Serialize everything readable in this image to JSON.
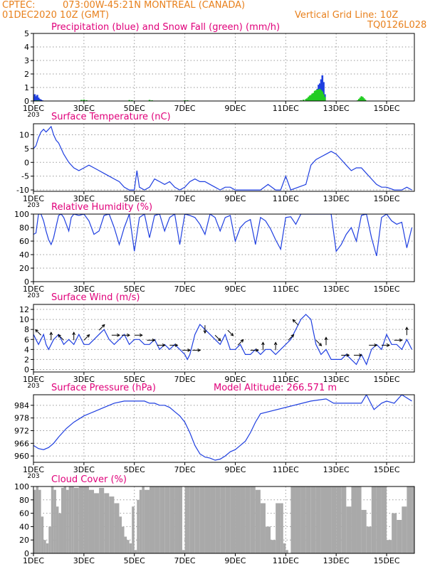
{
  "header": {
    "source": "CPTEC:",
    "location": "073:00W-45:21N  MONTREAL (CANADA)",
    "init_time": "01DEC2020 10Z (GMT)",
    "grid_line": "Vertical Grid Line: 10Z",
    "code": "TQ0126L028"
  },
  "colors": {
    "header": "#e8801c",
    "title": "#e0007a",
    "line": "#1f3fe0",
    "precip": "#1f3fe0",
    "snow": "#22cc22",
    "cloud": "#a9a9a9",
    "grid": "#9a9a9a",
    "axis": "#000000"
  },
  "x_labels": [
    "1DEC",
    "3DEC",
    "5DEC",
    "7DEC",
    "9DEC",
    "11DEC",
    "13DEC",
    "15DEC"
  ],
  "x_labels_day": [
    1,
    3,
    5,
    7,
    9,
    11,
    13,
    15
  ],
  "x_range": [
    1,
    16.1
  ],
  "year_stub": "203",
  "chart_data": [
    {
      "id": "precip",
      "type": "bar",
      "title": "Precipitation (blue) and Snow Fall (green) (mm/h)",
      "ylim": [
        0,
        5
      ],
      "yticks": [
        0,
        1,
        2,
        3,
        4,
        5
      ],
      "series": [
        {
          "name": "Precipitation",
          "color": "blue",
          "x": [
            1.0,
            1.05,
            1.1,
            1.15,
            1.2,
            1.25,
            1.3,
            1.35,
            11.9,
            11.95,
            12.0,
            12.05,
            12.1,
            12.15,
            12.2,
            12.25,
            12.3,
            12.35,
            12.4,
            12.45,
            12.5,
            12.55
          ],
          "values": [
            0.3,
            0.5,
            0.35,
            0.45,
            0.25,
            0.15,
            0.1,
            0.05,
            0.1,
            0.2,
            0.3,
            0.4,
            0.5,
            0.6,
            0.7,
            0.9,
            1.2,
            1.3,
            1.6,
            1.9,
            1.4,
            0.5
          ]
        },
        {
          "name": "Snow Fall",
          "color": "green",
          "x": [
            1.1,
            1.2,
            2.9,
            3.0,
            3.1,
            4.8,
            4.9,
            5.6,
            5.7,
            7.0,
            7.1,
            11.6,
            11.7,
            11.8,
            11.85,
            11.9,
            11.95,
            12.0,
            12.05,
            12.1,
            12.15,
            12.2,
            12.25,
            12.3,
            12.35,
            12.4,
            12.45,
            12.5,
            12.55,
            13.85,
            13.9,
            13.95,
            14.0,
            14.05,
            14.1,
            14.15
          ],
          "values": [
            0.05,
            0.05,
            0.08,
            0.1,
            0.06,
            0.07,
            0.06,
            0.08,
            0.05,
            0.06,
            0.05,
            0.05,
            0.1,
            0.15,
            0.2,
            0.3,
            0.4,
            0.45,
            0.55,
            0.6,
            0.75,
            0.8,
            0.85,
            0.85,
            0.9,
            0.8,
            0.7,
            0.5,
            0.3,
            0.05,
            0.15,
            0.25,
            0.35,
            0.3,
            0.2,
            0.1
          ]
        }
      ]
    },
    {
      "id": "temp",
      "type": "line",
      "title": "Surface Temperature (nC)",
      "ylim": [
        -10.5,
        14
      ],
      "yticks": [
        -10,
        -5,
        0,
        5,
        10
      ],
      "x": [
        1.0,
        1.1,
        1.2,
        1.3,
        1.4,
        1.5,
        1.6,
        1.7,
        1.8,
        1.9,
        2.0,
        2.2,
        2.4,
        2.6,
        2.8,
        3.0,
        3.2,
        3.4,
        3.6,
        3.8,
        4.0,
        4.2,
        4.4,
        4.6,
        4.8,
        5.0,
        5.1,
        5.2,
        5.4,
        5.6,
        5.8,
        6.0,
        6.2,
        6.4,
        6.6,
        6.8,
        7.0,
        7.2,
        7.4,
        7.6,
        7.8,
        8.0,
        8.2,
        8.4,
        8.6,
        8.8,
        9.0,
        9.5,
        10.0,
        10.3,
        10.6,
        10.8,
        11.0,
        11.2,
        11.5,
        11.8,
        12.0,
        12.2,
        12.4,
        12.6,
        12.8,
        13.0,
        13.2,
        13.4,
        13.6,
        13.8,
        14.0,
        14.2,
        14.4,
        14.6,
        14.8,
        15.0,
        15.3,
        15.6,
        15.8,
        16.0
      ],
      "values": [
        5,
        6,
        9,
        11,
        12,
        11,
        12,
        13,
        10,
        8,
        7,
        3,
        0,
        -2,
        -3,
        -2,
        -1,
        -2,
        -3,
        -4,
        -5,
        -6,
        -7,
        -9,
        -10,
        -10,
        -3,
        -9,
        -10,
        -9,
        -6,
        -7,
        -8,
        -7,
        -9,
        -10,
        -9,
        -7,
        -6,
        -7,
        -7,
        -8,
        -9,
        -10,
        -9,
        -9,
        -10,
        -10,
        -10,
        -8,
        -10,
        -10,
        -5,
        -10,
        -9,
        -8,
        -1,
        1,
        2,
        3,
        4,
        3,
        1,
        -1,
        -3,
        -2,
        -2,
        -4,
        -6,
        -8,
        -9,
        -9,
        -10,
        -10,
        -9,
        -10
      ]
    },
    {
      "id": "rh",
      "type": "line",
      "title": "Relative Humidity (%)",
      "ylim": [
        0,
        100
      ],
      "yticks": [
        0,
        20,
        40,
        60,
        80,
        100
      ],
      "x": [
        1.0,
        1.1,
        1.2,
        1.3,
        1.4,
        1.5,
        1.6,
        1.7,
        1.8,
        1.9,
        2.0,
        2.1,
        2.2,
        2.3,
        2.4,
        2.5,
        2.6,
        2.8,
        3.0,
        3.2,
        3.4,
        3.6,
        3.8,
        4.0,
        4.2,
        4.4,
        4.6,
        4.8,
        5.0,
        5.2,
        5.4,
        5.6,
        5.8,
        6.0,
        6.2,
        6.4,
        6.6,
        6.8,
        7.0,
        7.2,
        7.4,
        7.6,
        7.8,
        8.0,
        8.2,
        8.4,
        8.6,
        8.8,
        9.0,
        9.2,
        9.4,
        9.6,
        9.8,
        10.0,
        10.2,
        10.4,
        10.6,
        10.8,
        11.0,
        11.2,
        11.4,
        11.6,
        11.8,
        12.0,
        12.2,
        12.4,
        12.6,
        12.8,
        13.0,
        13.2,
        13.4,
        13.6,
        13.8,
        14.0,
        14.2,
        14.4,
        14.6,
        14.8,
        15.0,
        15.2,
        15.4,
        15.6,
        15.8,
        16.0
      ],
      "values": [
        70,
        72,
        100,
        100,
        90,
        75,
        62,
        55,
        65,
        82,
        98,
        100,
        95,
        85,
        75,
        95,
        100,
        98,
        100,
        90,
        70,
        75,
        98,
        100,
        80,
        55,
        80,
        100,
        45,
        95,
        100,
        65,
        98,
        100,
        75,
        95,
        100,
        55,
        100,
        98,
        95,
        85,
        70,
        100,
        95,
        75,
        95,
        98,
        60,
        80,
        88,
        92,
        55,
        95,
        90,
        78,
        62,
        48,
        95,
        96,
        85,
        100,
        100,
        100,
        100,
        100,
        100,
        100,
        45,
        55,
        70,
        80,
        60,
        98,
        100,
        65,
        38,
        95,
        100,
        90,
        85,
        88,
        50,
        80
      ]
    },
    {
      "id": "wind",
      "type": "line",
      "title": "Surface Wind (m/s)",
      "ylim": [
        -0.5,
        13
      ],
      "yticks": [
        0,
        2,
        4,
        6,
        8,
        10,
        12
      ],
      "x": [
        1.0,
        1.1,
        1.2,
        1.3,
        1.4,
        1.5,
        1.6,
        1.7,
        1.8,
        2.0,
        2.2,
        2.4,
        2.6,
        2.8,
        3.0,
        3.2,
        3.4,
        3.6,
        3.8,
        4.0,
        4.2,
        4.4,
        4.6,
        4.8,
        5.0,
        5.2,
        5.4,
        5.6,
        5.8,
        6.0,
        6.2,
        6.4,
        6.6,
        6.8,
        7.0,
        7.1,
        7.2,
        7.4,
        7.5,
        7.6,
        7.8,
        8.0,
        8.2,
        8.4,
        8.6,
        8.8,
        9.0,
        9.2,
        9.4,
        9.6,
        9.8,
        10.0,
        10.2,
        10.4,
        10.6,
        10.8,
        11.0,
        11.2,
        11.4,
        11.6,
        11.8,
        12.0,
        12.2,
        12.4,
        12.6,
        12.8,
        13.0,
        13.2,
        13.4,
        13.6,
        13.8,
        14.0,
        14.2,
        14.4,
        14.6,
        14.8,
        15.0,
        15.2,
        15.4,
        15.6,
        15.8,
        16.0
      ],
      "values": [
        7,
        6,
        5,
        6,
        7,
        5,
        4,
        5,
        6,
        7,
        5,
        6,
        5,
        7,
        5,
        5,
        6,
        7,
        8,
        6,
        5,
        6,
        7,
        5,
        6,
        6,
        5,
        5,
        6,
        4,
        5,
        4,
        5,
        4,
        3,
        2,
        3,
        7,
        8,
        9,
        8,
        7,
        6,
        5,
        7,
        4,
        4,
        5,
        3,
        3,
        4,
        3,
        4,
        4,
        3,
        4,
        5,
        6,
        8,
        10,
        11,
        10,
        5,
        3,
        4,
        2,
        2,
        2,
        3,
        2,
        1,
        3,
        1,
        4,
        5,
        4,
        7,
        5,
        5,
        4,
        6,
        4
      ],
      "barbs": [
        {
          "x": 1.3,
          "dir": "NW"
        },
        {
          "x": 1.7,
          "dir": "N"
        },
        {
          "x": 2.2,
          "dir": "NW"
        },
        {
          "x": 2.6,
          "dir": "N"
        },
        {
          "x": 3.0,
          "dir": "NE"
        },
        {
          "x": 3.6,
          "dir": "NE"
        },
        {
          "x": 4.1,
          "dir": "E"
        },
        {
          "x": 4.5,
          "dir": "E"
        },
        {
          "x": 5.0,
          "dir": "E"
        },
        {
          "x": 5.5,
          "dir": "E"
        },
        {
          "x": 5.9,
          "dir": "E"
        },
        {
          "x": 6.4,
          "dir": "E"
        },
        {
          "x": 6.9,
          "dir": "E"
        },
        {
          "x": 7.3,
          "dir": "E"
        },
        {
          "x": 7.8,
          "dir": "S"
        },
        {
          "x": 8.2,
          "dir": "SE"
        },
        {
          "x": 8.7,
          "dir": "SE"
        },
        {
          "x": 9.1,
          "dir": "NE"
        },
        {
          "x": 9.6,
          "dir": "E"
        },
        {
          "x": 10.1,
          "dir": "N"
        },
        {
          "x": 10.6,
          "dir": "N"
        },
        {
          "x": 11.1,
          "dir": "NE"
        },
        {
          "x": 11.5,
          "dir": "NW"
        },
        {
          "x": 12.2,
          "dir": "SE"
        },
        {
          "x": 12.6,
          "dir": "N"
        },
        {
          "x": 13.2,
          "dir": "E"
        },
        {
          "x": 13.7,
          "dir": "E"
        },
        {
          "x": 14.3,
          "dir": "E"
        },
        {
          "x": 14.8,
          "dir": "E"
        },
        {
          "x": 15.3,
          "dir": "E"
        },
        {
          "x": 15.8,
          "dir": "N"
        }
      ]
    },
    {
      "id": "pressure",
      "type": "line",
      "title": "Surface Pressure (hPa)",
      "subtitle": "Model Altitude: 266.571  m",
      "ylim": [
        957,
        989
      ],
      "yticks": [
        960,
        966,
        972,
        978,
        984
      ],
      "x": [
        1.0,
        1.2,
        1.4,
        1.6,
        1.8,
        2.0,
        2.3,
        2.6,
        3.0,
        3.4,
        3.8,
        4.2,
        4.6,
        5.0,
        5.2,
        5.4,
        5.6,
        5.8,
        6.0,
        6.2,
        6.4,
        6.6,
        6.8,
        7.0,
        7.2,
        7.4,
        7.6,
        7.8,
        8.0,
        8.2,
        8.4,
        8.6,
        8.8,
        9.0,
        9.2,
        9.4,
        9.6,
        9.8,
        10.0,
        12.0,
        12.6,
        12.9,
        14.0,
        14.2,
        14.5,
        14.8,
        15.0,
        15.3,
        15.6,
        16.0
      ],
      "values": [
        965,
        963.5,
        963,
        964,
        966,
        969,
        973,
        976,
        979,
        981,
        983,
        985,
        986,
        986,
        986,
        986,
        985,
        985,
        984,
        984,
        983,
        981,
        979,
        976,
        971,
        965,
        961,
        959.5,
        959,
        958,
        958.5,
        960,
        962,
        963,
        965,
        967,
        971,
        976,
        980,
        986,
        987,
        985,
        985,
        989,
        982,
        985,
        986,
        985,
        989,
        986
      ]
    },
    {
      "id": "cloud",
      "type": "area",
      "title": "Cloud Cover (%)",
      "ylim": [
        0,
        100
      ],
      "yticks": [
        0,
        20,
        40,
        60,
        80,
        100
      ],
      "x": [
        1.0,
        1.1,
        1.2,
        1.3,
        1.4,
        1.5,
        1.6,
        1.7,
        1.8,
        1.9,
        2.0,
        2.1,
        2.2,
        2.3,
        2.4,
        2.5,
        2.6,
        2.8,
        3.0,
        3.2,
        3.4,
        3.6,
        3.8,
        4.0,
        4.2,
        4.4,
        4.5,
        4.6,
        4.7,
        4.8,
        4.9,
        5.0,
        5.1,
        5.2,
        5.3,
        5.4,
        5.6,
        5.8,
        6.0,
        6.2,
        6.4,
        6.6,
        6.8,
        6.9,
        7.0,
        7.2,
        7.4,
        7.6,
        7.8,
        8.0,
        8.2,
        8.4,
        8.6,
        8.8,
        9.0,
        9.2,
        9.4,
        9.6,
        9.8,
        10.0,
        10.2,
        10.4,
        10.6,
        10.8,
        10.9,
        11.0,
        11.1,
        11.2,
        11.4,
        11.6,
        11.8,
        12.0,
        12.2,
        12.4,
        12.6,
        12.8,
        13.0,
        13.2,
        13.4,
        13.6,
        13.8,
        14.0,
        14.2,
        14.4,
        14.6,
        14.8,
        15.0,
        15.2,
        15.4,
        15.6,
        15.8,
        16.0
      ],
      "values": [
        95,
        100,
        95,
        55,
        20,
        15,
        40,
        100,
        95,
        70,
        60,
        98,
        100,
        95,
        100,
        100,
        98,
        100,
        100,
        95,
        90,
        98,
        90,
        85,
        75,
        55,
        40,
        25,
        20,
        15,
        70,
        5,
        80,
        95,
        100,
        95,
        100,
        100,
        100,
        100,
        100,
        100,
        100,
        5,
        100,
        100,
        100,
        100,
        100,
        100,
        100,
        100,
        100,
        100,
        100,
        100,
        100,
        100,
        95,
        75,
        40,
        20,
        75,
        75,
        15,
        5,
        0,
        100,
        100,
        100,
        100,
        100,
        100,
        100,
        100,
        100,
        100,
        100,
        70,
        100,
        100,
        65,
        40,
        100,
        100,
        100,
        20,
        60,
        50,
        70,
        100,
        100
      ]
    }
  ]
}
